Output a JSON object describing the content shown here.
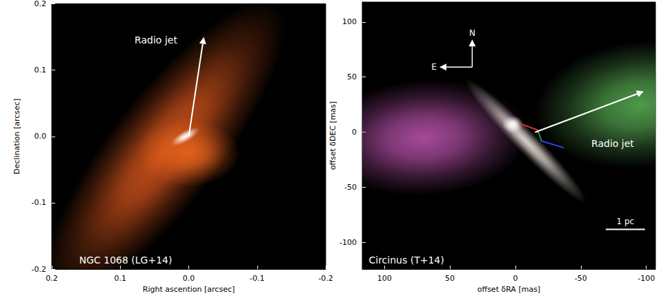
{
  "chart_data": [
    {
      "type": "image",
      "xlabel": "Right ascention [arcsec]",
      "ylabel": "Declination [arcsec]",
      "xlim": [
        0.2,
        -0.2
      ],
      "xticks": [
        0.2,
        0.1,
        {
          "value": 0,
          "label": "0.0"
        },
        -0.1,
        -0.2
      ],
      "ylim": [
        -0.2,
        0.2
      ],
      "yticks": [
        -0.2,
        -0.1,
        {
          "value": 0,
          "label": "0.0"
        },
        0.1,
        0.2
      ],
      "grid": false,
      "blobs": [
        {
          "x": 0.035,
          "y": -0.02,
          "tip_x": -0.13,
          "tip_y": 0.2,
          "axis_ratio": 0.3,
          "color": "#c8501a"
        },
        {
          "x": 0.0,
          "y": -0.025,
          "tip_x": -0.075,
          "tip_y": -0.025,
          "axis_ratio": 0.65,
          "color": "#e0601c"
        },
        {
          "x": 0.005,
          "y": 0.0,
          "tip_x": -0.015,
          "tip_y": 0.012,
          "axis_ratio": 0.35,
          "color": "#ffffff"
        }
      ],
      "arrows": [
        {
          "x": [
            0,
            -0.022
          ],
          "y": [
            0,
            0.15
          ]
        }
      ],
      "annotations": [
        {
          "text": "Radio jet",
          "x": 0.079,
          "y": 0.145
        },
        {
          "text": "NGC 1068 (LG+14)",
          "x": 0.16,
          "y": -0.186
        }
      ]
    },
    {
      "type": "image",
      "xlabel": "offset δRA [mas]",
      "ylabel": "offset δDEC [mas]",
      "xlim": [
        117,
        -107
      ],
      "xticks": [
        100,
        50,
        0,
        -50,
        -100
      ],
      "ylim": [
        -124,
        118
      ],
      "yticks": [
        -100,
        -50,
        0,
        50,
        100
      ],
      "grid": false,
      "blobs": [
        {
          "x": -95,
          "y": 25,
          "tip_x": -175,
          "tip_y": 35,
          "axis_ratio": 0.6,
          "color": "#4f9a4a"
        },
        {
          "x": 70,
          "y": -5,
          "tip_x": 150,
          "tip_y": -10,
          "axis_ratio": 0.55,
          "color": "#a64a9a"
        },
        {
          "x": -8,
          "y": -8,
          "tip_x": 38,
          "tip_y": 48,
          "axis_ratio": 0.13,
          "color": "#d8d0c8"
        },
        {
          "x": 2,
          "y": 7,
          "tip_x": 10,
          "tip_y": 7,
          "axis_ratio": 0.85,
          "color": "#ffffff"
        }
      ],
      "tracks": [
        {
          "color": "#e03030",
          "x": [
            -3,
            -17
          ],
          "y": [
            8,
            2
          ]
        },
        {
          "color": "#2e9b3a",
          "x": [
            -17,
            -20
          ],
          "y": [
            2,
            -8
          ]
        },
        {
          "color": "#2848e0",
          "x": [
            -20,
            -37
          ],
          "y": [
            -8,
            -14
          ]
        }
      ],
      "arrows": [
        {
          "x": [
            -15,
            -98
          ],
          "y": [
            0,
            37
          ]
        }
      ],
      "compass": {
        "x": 33,
        "y": 59,
        "length": 25,
        "north": "N",
        "east": "E"
      },
      "scale_bar": {
        "label": "1 pc",
        "x": -69,
        "y": -88,
        "length": 30
      },
      "annotations": [
        {
          "text": "Radio jet",
          "x": -58,
          "y": -10
        },
        {
          "text": "Circinus (T+14)",
          "x": 112,
          "y": -116
        }
      ]
    }
  ]
}
